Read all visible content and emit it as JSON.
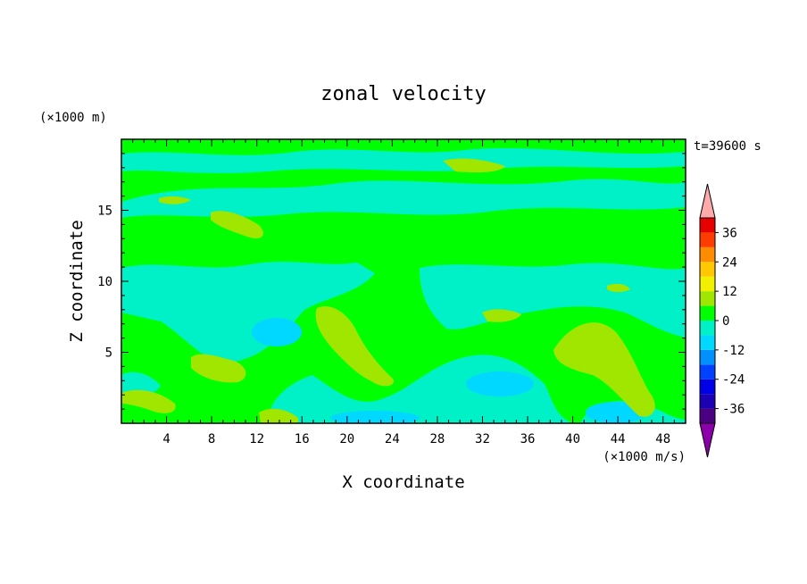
{
  "chart_data": {
    "type": "heatmap",
    "title": "zonal velocity",
    "xlabel": "X coordinate",
    "ylabel": "Z coordinate",
    "x_unit": "(×1000 m/s)",
    "y_unit": "(×1000 m)",
    "time_label": "t=39600 s",
    "xlim": [
      0,
      50
    ],
    "ylim": [
      0,
      20
    ],
    "x_ticks": [
      4,
      8,
      12,
      16,
      20,
      24,
      28,
      32,
      36,
      40,
      44,
      48
    ],
    "y_ticks": [
      5,
      10,
      15
    ],
    "colorbar": {
      "tick_labels": [
        36,
        24,
        12,
        0,
        -12,
        -24,
        -36
      ],
      "levels": [
        -42,
        -36,
        -30,
        -24,
        -18,
        -12,
        -6,
        0,
        6,
        12,
        18,
        24,
        30,
        36,
        42
      ],
      "colors": [
        "#8b00a8",
        "#4b0082",
        "#1c00b4",
        "#0000e6",
        "#0040ff",
        "#0090ff",
        "#00d8ff",
        "#00f0c8",
        "#00ff00",
        "#a0e600",
        "#f0f000",
        "#ffc800",
        "#ff8c00",
        "#ff3c00",
        "#e60000",
        "#ffaaaa"
      ]
    },
    "grid": false,
    "legend": "right"
  }
}
